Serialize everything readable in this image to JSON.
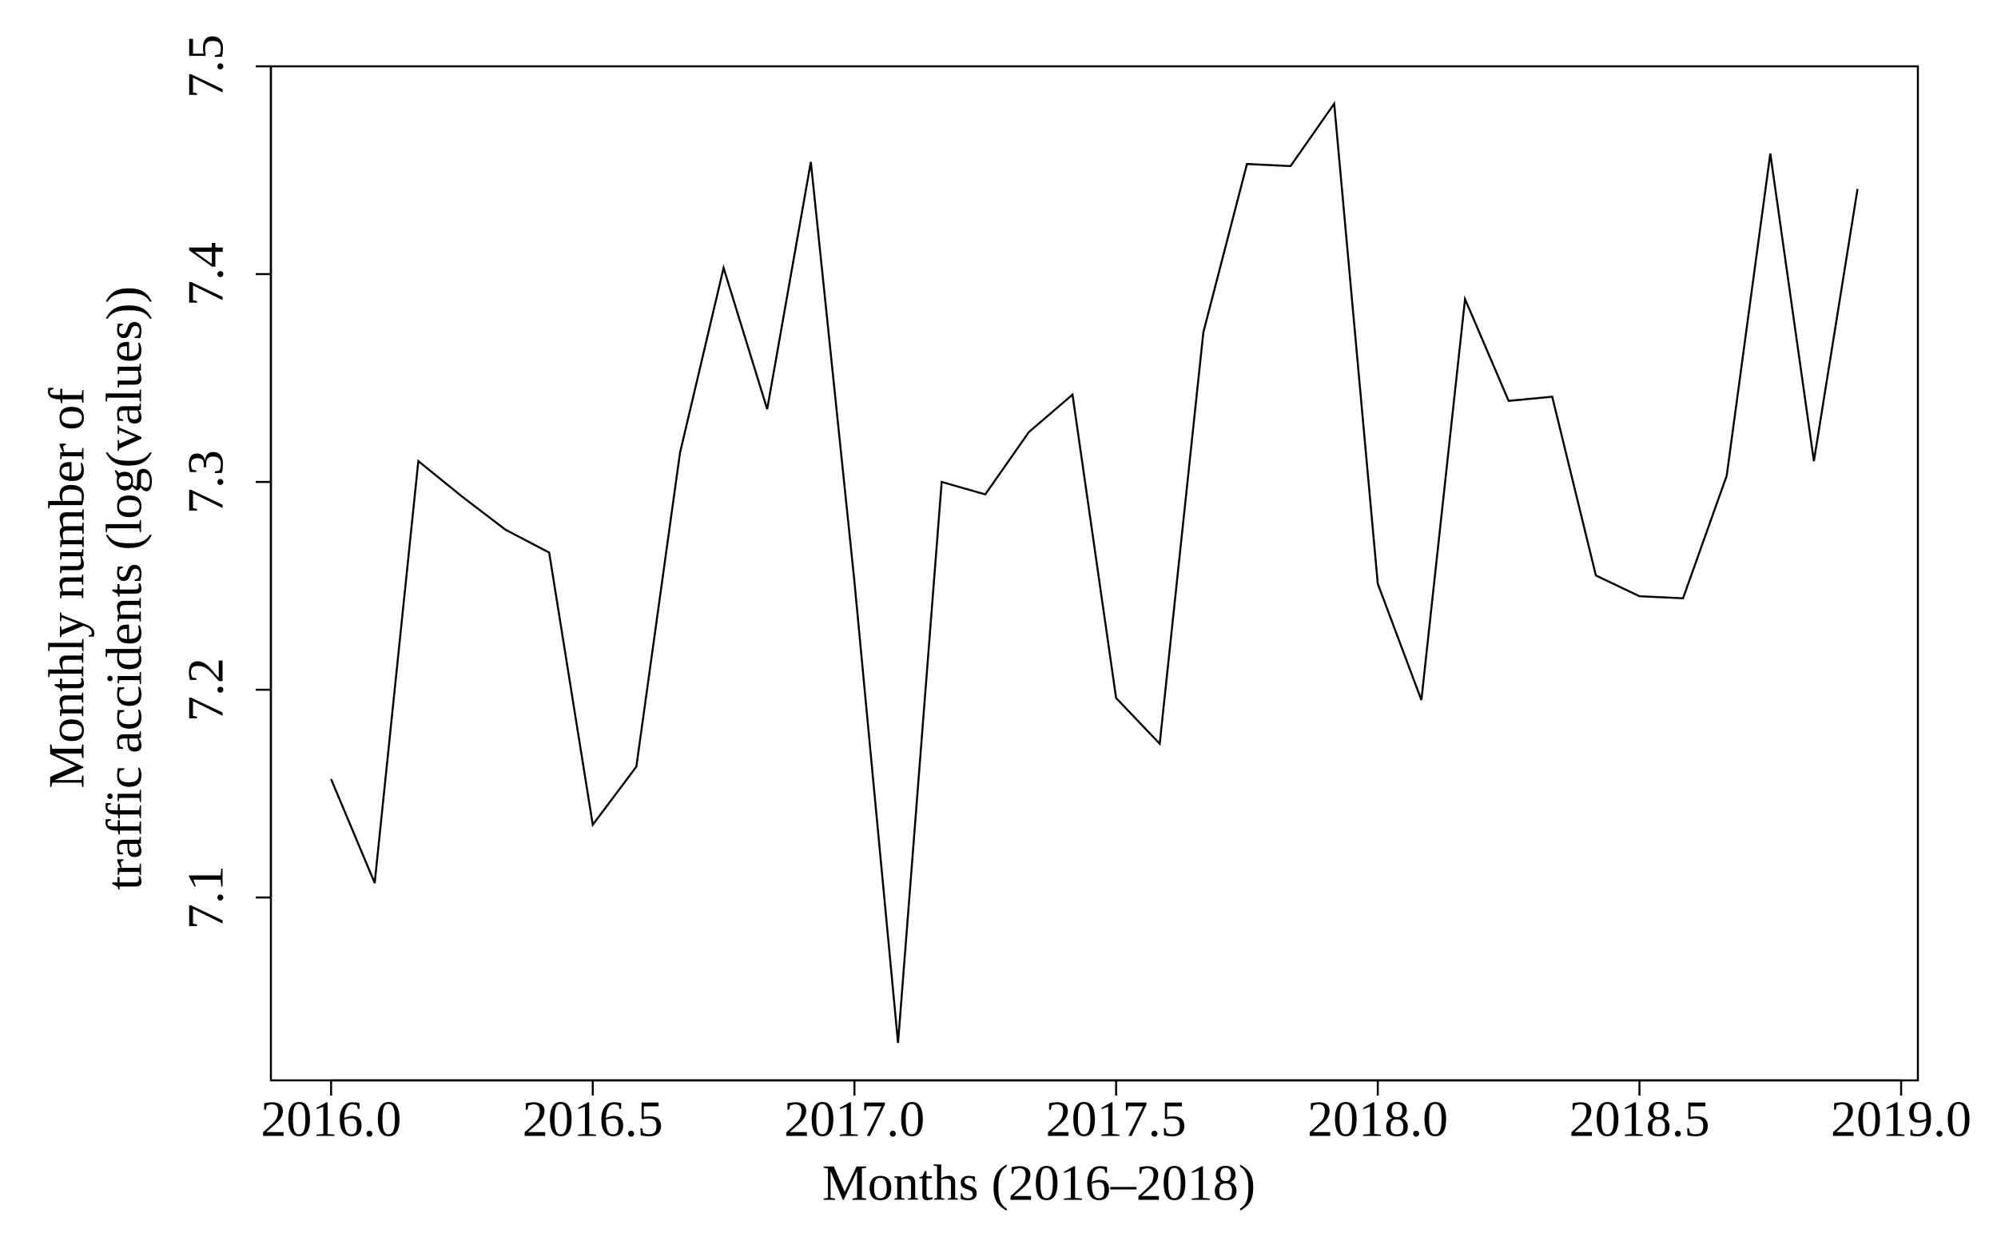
{
  "chart_data": {
    "type": "line",
    "xlabel": "Months (2016–2018)",
    "ylabel": [
      "Monthly number of",
      "traffic accidents (log(values))"
    ],
    "x": [
      2016.0,
      2016.0833,
      2016.1667,
      2016.25,
      2016.3333,
      2016.4167,
      2016.5,
      2016.5833,
      2016.6667,
      2016.75,
      2016.8333,
      2016.9167,
      2017.0,
      2017.0833,
      2017.1667,
      2017.25,
      2017.3333,
      2017.4167,
      2017.5,
      2017.5833,
      2017.6667,
      2017.75,
      2017.8333,
      2017.9167,
      2018.0,
      2018.0833,
      2018.1667,
      2018.25,
      2018.3333,
      2018.4167,
      2018.5,
      2018.5833,
      2018.6667,
      2018.75,
      2018.8333,
      2018.9167
    ],
    "values": [
      7.157,
      7.107,
      7.31,
      7.293,
      7.277,
      7.266,
      7.135,
      7.163,
      7.314,
      7.403,
      7.335,
      7.454,
      7.252,
      7.03,
      7.3,
      7.294,
      7.324,
      7.342,
      7.196,
      7.174,
      7.372,
      7.453,
      7.452,
      7.482,
      7.251,
      7.195,
      7.388,
      7.339,
      7.341,
      7.255,
      7.245,
      7.244,
      7.303,
      7.458,
      7.31,
      7.441
    ],
    "color": "#000000",
    "xlim": [
      2015.885,
      2019.032
    ],
    "ylim": [
      7.012,
      7.5
    ],
    "xticks": [
      {
        "value": 2016,
        "label": "2016.0"
      },
      {
        "value": 2016.5,
        "label": "2016.5"
      },
      {
        "value": 2017,
        "label": "2017.0"
      },
      {
        "value": 2017.5,
        "label": "2017.5"
      },
      {
        "value": 2018,
        "label": "2018.0"
      },
      {
        "value": 2018.5,
        "label": "2018.5"
      },
      {
        "value": 2019,
        "label": "2019.0"
      }
    ],
    "yticks": [
      7.1,
      7.2,
      7.3,
      7.4,
      7.5
    ]
  }
}
